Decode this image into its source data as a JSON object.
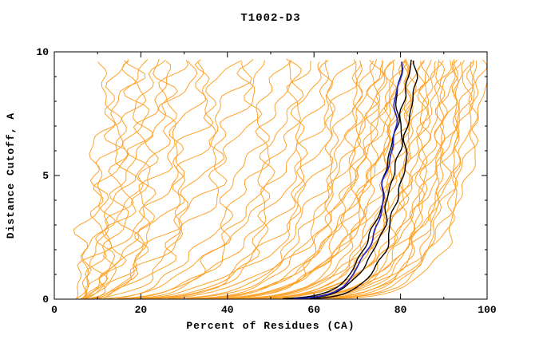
{
  "chart_data": {
    "type": "line",
    "title": "T1002-D3",
    "xlabel": "Percent of Residues (CA)",
    "ylabel": "Distance Cutoff, A",
    "xlim": [
      0,
      100
    ],
    "ylim": [
      0,
      10
    ],
    "xticks_major": [
      0,
      20,
      40,
      60,
      80,
      100
    ],
    "xtick_minor_step": 10,
    "yticks_major": [
      0,
      5,
      10
    ],
    "ytick_minor_step": 1,
    "grid": false,
    "legend": "none",
    "frame_color": "#000000",
    "background": "#FFFFFF",
    "curve_top_y": 9.7,
    "curve_param_format": [
      "x_start_percent",
      "x_end_percent_at_top",
      "shape_exponent",
      "wiggle_amplitude"
    ],
    "series_groups": [
      {
        "name": "predictions-other-models",
        "color": "#FFA228",
        "width": 1,
        "curves": [
          [
            5,
            13,
            1.3,
            2.2
          ],
          [
            6,
            15,
            1.5,
            2.0
          ],
          [
            5,
            17,
            1.4,
            2.4
          ],
          [
            7,
            19,
            1.6,
            2.1
          ],
          [
            6,
            21,
            1.5,
            2.3
          ],
          [
            5,
            23,
            1.7,
            2.0
          ],
          [
            8,
            25,
            1.8,
            2.2
          ],
          [
            6,
            27,
            1.6,
            2.5
          ],
          [
            5,
            29,
            2.0,
            2.1
          ],
          [
            7,
            31,
            1.9,
            2.3
          ],
          [
            6,
            34,
            2.1,
            2.0
          ],
          [
            5,
            37,
            2.2,
            2.4
          ],
          [
            8,
            40,
            2.0,
            2.2
          ],
          [
            6,
            43,
            2.3,
            2.1
          ],
          [
            5,
            46,
            2.4,
            2.3
          ],
          [
            7,
            49,
            2.2,
            2.0
          ],
          [
            6,
            52,
            3.0,
            1.8
          ],
          [
            5,
            55,
            3.2,
            1.9
          ],
          [
            7,
            57,
            3.5,
            1.7
          ],
          [
            6,
            59,
            3.3,
            1.8
          ],
          [
            5,
            61,
            3.8,
            1.6
          ],
          [
            8,
            63,
            4.0,
            1.7
          ],
          [
            6,
            65,
            4.2,
            1.8
          ],
          [
            5,
            67,
            4.5,
            1.6
          ],
          [
            7,
            69,
            4.3,
            1.7
          ],
          [
            6,
            71,
            4.8,
            1.5
          ],
          [
            5,
            72,
            5.5,
            1.4
          ],
          [
            6,
            73,
            6.0,
            1.3
          ],
          [
            7,
            74,
            5.0,
            1.5
          ],
          [
            5,
            75,
            6.5,
            1.2
          ],
          [
            6,
            76,
            7.0,
            1.4
          ],
          [
            8,
            77,
            6.0,
            1.3
          ],
          [
            5,
            78,
            7.5,
            1.2
          ],
          [
            6,
            79,
            6.8,
            1.4
          ],
          [
            7,
            80,
            8.0,
            1.1
          ],
          [
            5,
            81,
            7.0,
            1.3
          ],
          [
            6,
            82,
            8.5,
            1.2
          ],
          [
            5,
            83,
            7.6,
            1.4
          ],
          [
            7,
            84,
            9.0,
            1.1
          ],
          [
            6,
            85,
            8.0,
            1.2
          ],
          [
            5,
            86,
            9.5,
            1.3
          ],
          [
            8,
            87,
            8.6,
            1.1
          ],
          [
            6,
            88,
            10,
            1.2
          ],
          [
            5,
            89,
            9.0,
            1.3
          ],
          [
            7,
            90,
            10.5,
            1.0
          ],
          [
            6,
            91,
            9.6,
            1.2
          ],
          [
            5,
            92,
            11,
            1.1
          ],
          [
            6,
            93,
            10,
            1.2
          ],
          [
            8,
            94,
            11.5,
            1.0
          ],
          [
            5,
            95,
            10.6,
            1.1
          ],
          [
            7,
            96,
            12,
            1.0
          ],
          [
            6,
            97,
            11,
            1.1
          ],
          [
            5,
            98,
            12.5,
            1.0
          ],
          [
            6,
            99,
            11.6,
            1.1
          ],
          [
            7,
            100,
            13,
            0.9
          ],
          [
            5,
            96,
            9.8,
            1.2
          ],
          [
            6,
            88,
            8.2,
            1.3
          ],
          [
            5,
            80,
            7.2,
            1.2
          ],
          [
            7,
            76,
            6.2,
            1.3
          ],
          [
            6,
            84,
            8.8,
            1.1
          ],
          [
            5,
            92,
            10.2,
            1.2
          ]
        ]
      },
      {
        "name": "predictions-highlighted-models",
        "color": "#000000",
        "width": 1.4,
        "curves": [
          [
            20,
            80.5,
            10,
            0.5
          ],
          [
            21,
            82,
            11,
            0.5
          ],
          [
            23,
            83.5,
            12,
            0.5
          ]
        ]
      },
      {
        "name": "prediction-best-model",
        "color": "#2121CC",
        "width": 1.6,
        "curves": [
          [
            22,
            80.2,
            11,
            0.45
          ]
        ]
      }
    ]
  }
}
